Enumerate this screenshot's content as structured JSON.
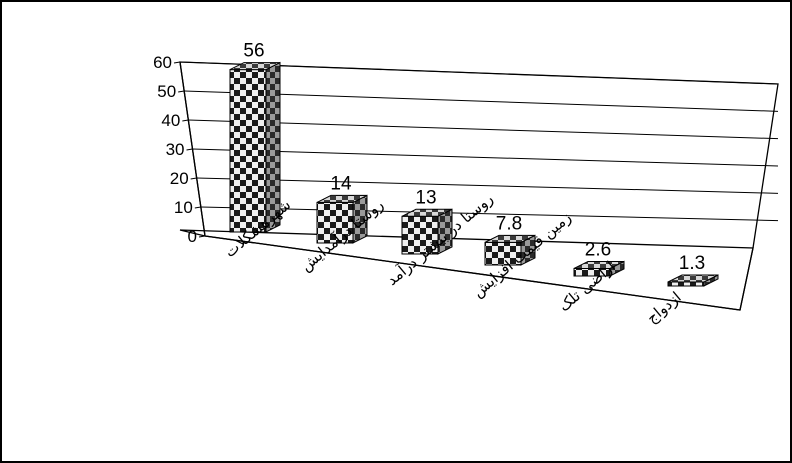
{
  "chart_data": {
    "type": "bar",
    "style": "3d-column",
    "fill_pattern": "checkerboard",
    "grid": true,
    "legend": "none",
    "categories": [
      "شهرهشکلات",
      "روستا درآمدایش",
      "روستا در بیشتر درآمد",
      "زمین قیمت افزایش",
      "اراضی تلک",
      "ازدواج"
    ],
    "values": [
      56,
      14,
      13,
      7.8,
      2.6,
      1.3
    ],
    "data_labels": [
      "56",
      "14",
      "13",
      "7.8",
      "2.6",
      "1.3"
    ],
    "yticks": [
      "0",
      "10",
      "20",
      "30",
      "40",
      "50",
      "60"
    ],
    "ylim": [
      0,
      60
    ],
    "colors": {
      "border": "#000000",
      "grid": "#000000",
      "dark": "#1a1a1a",
      "light": "#f2f2f2",
      "mid": "#808080"
    }
  }
}
